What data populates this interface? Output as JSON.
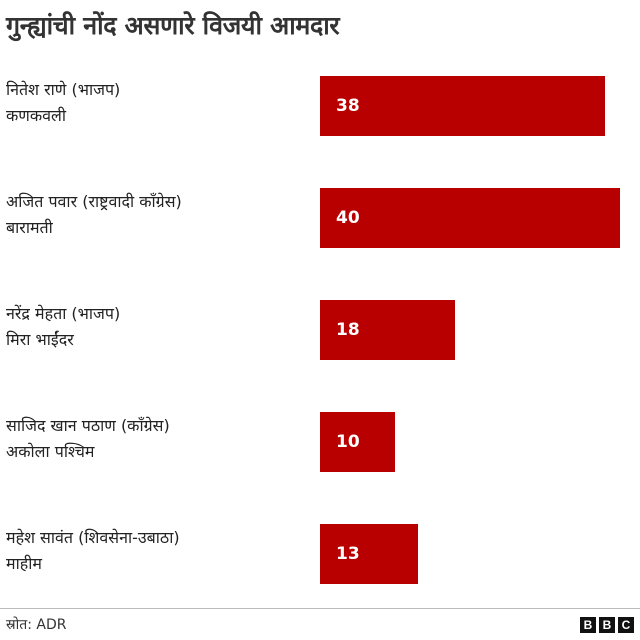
{
  "title": "गुन्ह्यांची नोंद असणारे विजयी आमदार",
  "source": "स्रोत: ADR",
  "logo": [
    "B",
    "B",
    "C"
  ],
  "colors": {
    "bar": "#b80000",
    "bar_label": "#ffffff",
    "title": "#333333"
  },
  "chart_data": {
    "type": "bar",
    "orientation": "horizontal",
    "title": "गुन्ह्यांची नोंद असणारे विजयी आमदार",
    "categories": [
      {
        "name": "नितेश राणे (भाजप)",
        "constituency": "कणकवली"
      },
      {
        "name": "अजित पवार (राष्ट्रवादी काँग्रेस)",
        "constituency": "बारामती"
      },
      {
        "name": "नरेंद्र मेहता (भाजप)",
        "constituency": "मिरा भाईंदर"
      },
      {
        "name": "साजिद खान पठाण (काँग्रेस)",
        "constituency": "अकोला पश्चिम"
      },
      {
        "name": "महेश सावंत (शिवसेना-उबाठा)",
        "constituency": "माहीम"
      }
    ],
    "values": [
      38,
      40,
      18,
      10,
      13
    ],
    "xlim": [
      0,
      40
    ],
    "grid": false,
    "legend": "none"
  }
}
